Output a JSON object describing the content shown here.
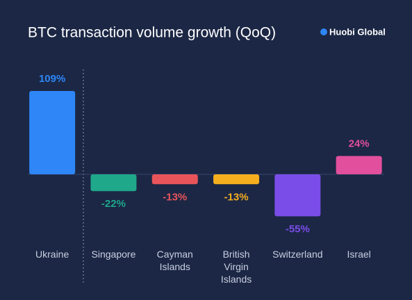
{
  "chart_data": {
    "type": "bar",
    "title": "BTC transaction volume growth (QoQ)",
    "brand": "Huobi Global",
    "categories": [
      "Ukraine",
      "Singapore",
      "Cayman Islands",
      "British Virgin Islands",
      "Switzerland",
      "Israel"
    ],
    "values": [
      109,
      -22,
      -13,
      -13,
      -55,
      24
    ],
    "value_labels": [
      "109%",
      "-22%",
      "-13%",
      "-13%",
      "-55%",
      "24%"
    ],
    "colors": [
      "#2e86f7",
      "#1fa88a",
      "#e8545a",
      "#f5ae1d",
      "#7b4de8",
      "#e24f9d"
    ]
  }
}
